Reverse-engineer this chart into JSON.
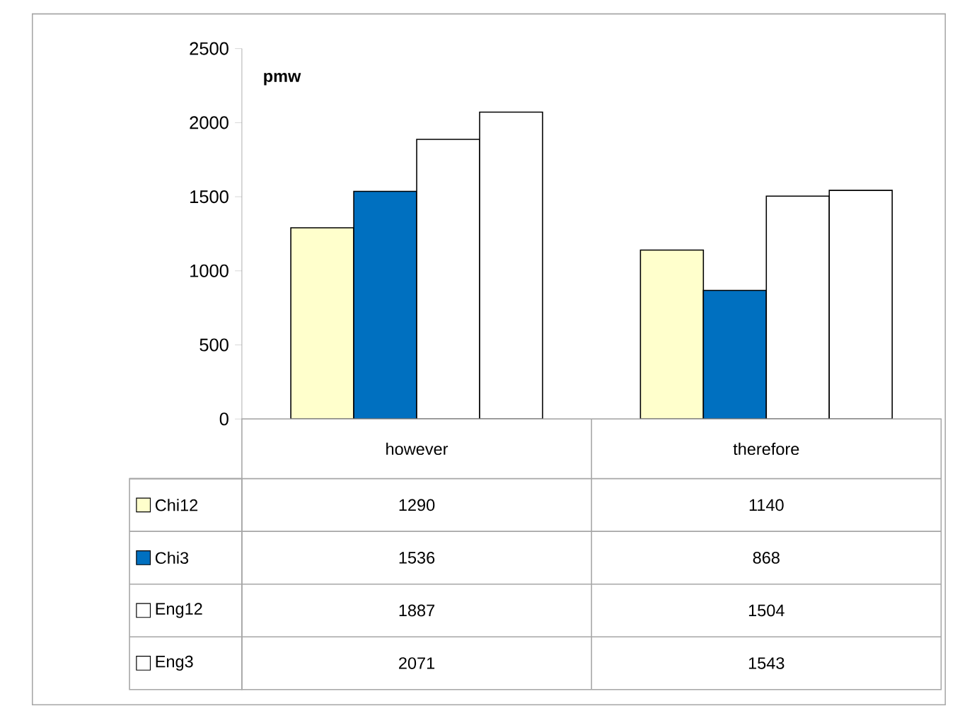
{
  "chart_data": {
    "type": "bar",
    "ylabel": "pmw",
    "categories": [
      "however",
      "therefore"
    ],
    "series": [
      {
        "name": "Chi12",
        "color": "#ffffcc",
        "values": [
          1290,
          1140
        ]
      },
      {
        "name": "Chi3",
        "color": "#0070c0",
        "values": [
          1536,
          868
        ]
      },
      {
        "name": "Eng12",
        "color": "#ffffff",
        "values": [
          1887,
          1504
        ]
      },
      {
        "name": "Eng3",
        "color": "#ffffff",
        "values": [
          2071,
          1543
        ]
      }
    ],
    "ylim": [
      0,
      2500
    ],
    "yticks": [
      0,
      500,
      1000,
      1500,
      2000,
      2500
    ],
    "grid": false,
    "legend": "bottom",
    "data_labels": true
  }
}
